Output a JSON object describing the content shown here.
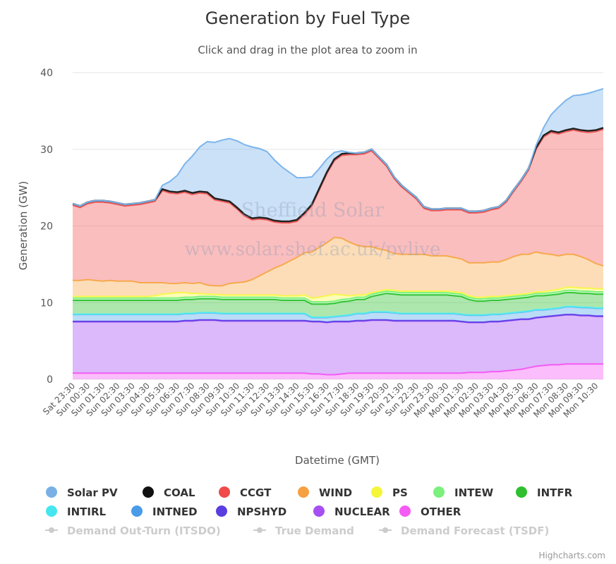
{
  "chart_data": {
    "type": "area",
    "stacking": "normal",
    "title": "Generation by Fuel Type",
    "subtitle": "Click and drag in the plot area to zoom in",
    "xlabel": "Datetime (GMT)",
    "ylabel": "Generation (GW)",
    "ylim": [
      0,
      40
    ],
    "yticks": [
      "0",
      "10",
      "20",
      "30",
      "40"
    ],
    "grid": true,
    "legend_position": "bottom",
    "watermark_lines": [
      "Sheffield Solar",
      "www.solar.shef.ac.uk/pvlive"
    ],
    "credits": "Highcharts.com",
    "x_tick_labels": [
      "Sat 23:30",
      "Sun 00:30",
      "Sun 01:30",
      "Sun 02:30",
      "Sun 03:30",
      "Sun 04:30",
      "Sun 05:30",
      "Sun 06:30",
      "Sun 07:30",
      "Sun 08:30",
      "Sun 09:30",
      "Sun 10:30",
      "Sun 11:30",
      "Sun 12:30",
      "Sun 13:30",
      "Sun 14:30",
      "Sun 15:30",
      "Sun 16:30",
      "Sun 17:30",
      "Sun 18:30",
      "Sun 19:30",
      "Sun 20:30",
      "Sun 21:30",
      "Sun 22:30",
      "Sun 23:30",
      "Mon 00:30",
      "Mon 01:30",
      "Mon 02:30",
      "Mon 03:30",
      "Mon 04:30",
      "Mon 05:30",
      "Mon 06:30",
      "Mon 07:30",
      "Mon 08:30",
      "Mon 09:30",
      "Mon 10:30"
    ],
    "x_tick_index": [
      0,
      2,
      4,
      6,
      8,
      10,
      12,
      14,
      16,
      18,
      20,
      22,
      24,
      26,
      28,
      30,
      32,
      34,
      36,
      38,
      40,
      42,
      44,
      46,
      48,
      50,
      52,
      54,
      56,
      58,
      60,
      62,
      64,
      66,
      68,
      70
    ],
    "series": [
      {
        "name": "OTHER",
        "color": "#f45bf4",
        "legend_color": "#f45bf4",
        "values": [
          0.8,
          0.8,
          0.8,
          0.8,
          0.8,
          0.8,
          0.8,
          0.8,
          0.8,
          0.8,
          0.8,
          0.8,
          0.8,
          0.8,
          0.8,
          0.8,
          0.8,
          0.8,
          0.8,
          0.8,
          0.8,
          0.8,
          0.8,
          0.8,
          0.8,
          0.8,
          0.8,
          0.8,
          0.8,
          0.8,
          0.8,
          0.8,
          0.7,
          0.7,
          0.6,
          0.6,
          0.7,
          0.8,
          0.8,
          0.8,
          0.8,
          0.8,
          0.8,
          0.8,
          0.8,
          0.8,
          0.8,
          0.8,
          0.8,
          0.8,
          0.8,
          0.8,
          0.8,
          0.9,
          0.9,
          0.9,
          1.0,
          1.0,
          1.1,
          1.2,
          1.3,
          1.5,
          1.7,
          1.8,
          1.9,
          1.9,
          2.0,
          2.0,
          2.0,
          2.0,
          2.0,
          2.0
        ]
      },
      {
        "name": "NUCLEAR",
        "color": "#a64ff2",
        "legend_color": "#a64ff2",
        "values": [
          6.7,
          6.7,
          6.7,
          6.7,
          6.7,
          6.7,
          6.7,
          6.7,
          6.7,
          6.7,
          6.7,
          6.7,
          6.7,
          6.7,
          6.7,
          6.8,
          6.8,
          6.9,
          6.9,
          6.9,
          6.8,
          6.8,
          6.8,
          6.8,
          6.8,
          6.8,
          6.8,
          6.8,
          6.8,
          6.8,
          6.8,
          6.8,
          6.8,
          6.8,
          6.8,
          6.9,
          6.8,
          6.7,
          6.8,
          6.8,
          6.9,
          6.9,
          6.9,
          6.8,
          6.8,
          6.8,
          6.8,
          6.8,
          6.8,
          6.8,
          6.8,
          6.8,
          6.7,
          6.5,
          6.5,
          6.5,
          6.5,
          6.5,
          6.5,
          6.5,
          6.5,
          6.3,
          6.3,
          6.3,
          6.3,
          6.4,
          6.4,
          6.4,
          6.3,
          6.3,
          6.2,
          6.2
        ]
      },
      {
        "name": "NPSHYD",
        "color": "#6243e8",
        "legend_color": "#5a3ee0",
        "values": [
          0.05,
          0.05,
          0.05,
          0.05,
          0.05,
          0.05,
          0.05,
          0.05,
          0.05,
          0.05,
          0.05,
          0.05,
          0.05,
          0.05,
          0.05,
          0.05,
          0.05,
          0.05,
          0.05,
          0.05,
          0.05,
          0.05,
          0.05,
          0.05,
          0.05,
          0.05,
          0.05,
          0.05,
          0.05,
          0.05,
          0.05,
          0.05,
          0.05,
          0.05,
          0.05,
          0.05,
          0.05,
          0.05,
          0.05,
          0.05,
          0.05,
          0.05,
          0.05,
          0.05,
          0.05,
          0.05,
          0.05,
          0.05,
          0.05,
          0.05,
          0.05,
          0.05,
          0.05,
          0.05,
          0.05,
          0.05,
          0.05,
          0.05,
          0.05,
          0.05,
          0.05,
          0.05,
          0.05,
          0.05,
          0.05,
          0.05,
          0.05,
          0.05,
          0.05,
          0.05,
          0.05,
          0.05
        ]
      },
      {
        "name": "INTNED",
        "color": "#56a7ea",
        "legend_color": "#4a9be8",
        "values": [
          0.9,
          0.9,
          0.9,
          0.9,
          0.9,
          0.9,
          0.9,
          0.9,
          0.9,
          0.9,
          0.9,
          0.9,
          0.9,
          0.9,
          0.9,
          0.9,
          0.9,
          0.9,
          0.9,
          0.9,
          0.9,
          0.9,
          0.9,
          0.9,
          0.9,
          0.9,
          0.9,
          0.9,
          0.9,
          0.9,
          0.9,
          0.9,
          0.5,
          0.5,
          0.6,
          0.6,
          0.7,
          0.8,
          0.9,
          0.9,
          1.0,
          1.0,
          1.0,
          1.0,
          0.9,
          0.9,
          0.9,
          0.9,
          0.9,
          0.9,
          0.9,
          0.9,
          0.9,
          0.9,
          0.9,
          0.9,
          0.9,
          0.9,
          0.9,
          0.9,
          0.9,
          1.0,
          1.0,
          0.9,
          0.9,
          0.9,
          1.0,
          1.0,
          1.0,
          1.0,
          1.0,
          1.0
        ]
      },
      {
        "name": "INTIRL",
        "color": "#52ecf2",
        "legend_color": "#45e6f0",
        "values": [
          0.05,
          0.05,
          0.05,
          0.05,
          0.05,
          0.05,
          0.05,
          0.05,
          0.05,
          0.05,
          0.05,
          0.05,
          0.05,
          0.05,
          0.05,
          0.05,
          0.05,
          0.05,
          0.05,
          0.05,
          0.05,
          0.05,
          0.05,
          0.05,
          0.05,
          0.05,
          0.05,
          0.05,
          0.05,
          0.05,
          0.05,
          0.05,
          0.05,
          0.05,
          0.05,
          0.05,
          0.05,
          0.05,
          0.05,
          0.05,
          0.05,
          0.05,
          0.05,
          0.05,
          0.05,
          0.05,
          0.05,
          0.05,
          0.05,
          0.05,
          0.05,
          0.05,
          0.05,
          0.05,
          0.05,
          0.05,
          0.05,
          0.05,
          0.05,
          0.05,
          0.05,
          0.05,
          0.05,
          0.05,
          0.05,
          0.05,
          0.05,
          0.05,
          0.05,
          0.05,
          0.05,
          0.05
        ]
      },
      {
        "name": "INTFR",
        "color": "#35c435",
        "legend_color": "#2fbf2f",
        "values": [
          1.8,
          1.8,
          1.8,
          1.8,
          1.8,
          1.8,
          1.8,
          1.8,
          1.8,
          1.8,
          1.8,
          1.8,
          1.8,
          1.8,
          1.8,
          1.8,
          1.8,
          1.8,
          1.8,
          1.8,
          1.8,
          1.8,
          1.8,
          1.8,
          1.8,
          1.8,
          1.8,
          1.8,
          1.7,
          1.7,
          1.7,
          1.7,
          1.7,
          1.7,
          1.7,
          1.7,
          1.8,
          1.8,
          1.8,
          1.8,
          2.0,
          2.2,
          2.4,
          2.4,
          2.4,
          2.4,
          2.4,
          2.4,
          2.4,
          2.4,
          2.4,
          2.3,
          2.3,
          2.0,
          1.8,
          1.8,
          1.8,
          1.8,
          1.8,
          1.8,
          1.8,
          1.8,
          1.8,
          1.8,
          1.8,
          1.8,
          1.8,
          1.8,
          1.8,
          1.8,
          1.8,
          1.8
        ]
      },
      {
        "name": "INTEW",
        "color": "#7df27d",
        "legend_color": "#7cf07c",
        "values": [
          0.3,
          0.3,
          0.3,
          0.3,
          0.3,
          0.3,
          0.3,
          0.3,
          0.3,
          0.3,
          0.3,
          0.3,
          0.3,
          0.3,
          0.3,
          0.3,
          0.3,
          0.3,
          0.3,
          0.3,
          0.3,
          0.3,
          0.3,
          0.3,
          0.3,
          0.3,
          0.3,
          0.3,
          0.3,
          0.3,
          0.3,
          0.3,
          0.3,
          0.3,
          0.3,
          0.3,
          0.3,
          0.3,
          0.3,
          0.3,
          0.3,
          0.3,
          0.3,
          0.3,
          0.3,
          0.3,
          0.3,
          0.3,
          0.3,
          0.3,
          0.3,
          0.3,
          0.3,
          0.3,
          0.3,
          0.3,
          0.3,
          0.3,
          0.3,
          0.3,
          0.3,
          0.3,
          0.3,
          0.3,
          0.3,
          0.3,
          0.3,
          0.3,
          0.3,
          0.3,
          0.3,
          0.3
        ]
      },
      {
        "name": "PS",
        "color": "#f7f74d",
        "legend_color": "#f5f53a",
        "values": [
          0.2,
          0.2,
          0.2,
          0.2,
          0.2,
          0.2,
          0.2,
          0.2,
          0.2,
          0.2,
          0.2,
          0.3,
          0.5,
          0.6,
          0.7,
          0.6,
          0.5,
          0.4,
          0.3,
          0.3,
          0.3,
          0.3,
          0.3,
          0.3,
          0.3,
          0.3,
          0.3,
          0.3,
          0.3,
          0.3,
          0.3,
          0.4,
          0.5,
          0.6,
          0.8,
          0.9,
          0.6,
          0.4,
          0.3,
          0.3,
          0.2,
          0.2,
          0.2,
          0.2,
          0.2,
          0.2,
          0.2,
          0.2,
          0.2,
          0.2,
          0.2,
          0.2,
          0.2,
          0.2,
          0.2,
          0.2,
          0.2,
          0.2,
          0.2,
          0.2,
          0.2,
          0.2,
          0.2,
          0.2,
          0.3,
          0.3,
          0.4,
          0.4,
          0.4,
          0.4,
          0.4,
          0.4
        ]
      },
      {
        "name": "WIND",
        "color": "#f7a94d",
        "legend_color": "#f5a142",
        "values": [
          2.1,
          2.1,
          2.2,
          2.1,
          2.0,
          2.1,
          2.0,
          2.0,
          2.0,
          1.8,
          1.8,
          1.7,
          1.5,
          1.3,
          1.2,
          1.3,
          1.3,
          1.4,
          1.2,
          1.1,
          1.2,
          1.5,
          1.6,
          1.7,
          2.0,
          2.5,
          3.0,
          3.5,
          4.0,
          4.5,
          5.0,
          5.5,
          6.0,
          6.5,
          6.9,
          7.4,
          7.4,
          7.0,
          6.5,
          6.3,
          6.0,
          5.5,
          5.1,
          4.8,
          4.8,
          4.8,
          4.8,
          4.8,
          4.6,
          4.6,
          4.6,
          4.5,
          4.4,
          4.3,
          4.5,
          4.5,
          4.5,
          4.5,
          4.7,
          5.0,
          5.2,
          5.1,
          5.2,
          5.0,
          4.7,
          4.4,
          4.3,
          4.3,
          4.1,
          3.7,
          3.3,
          3.0
        ]
      },
      {
        "name": "CCGT",
        "color": "#f25c5c",
        "legend_color": "#f04a4a",
        "values": [
          9.8,
          9.5,
          9.9,
          10.2,
          10.3,
          10.1,
          10.0,
          9.8,
          9.9,
          10.2,
          10.4,
          10.6,
          12.0,
          11.8,
          11.7,
          11.8,
          11.6,
          11.7,
          11.9,
          11.2,
          11.0,
          10.5,
          9.6,
          8.6,
          7.8,
          7.4,
          6.8,
          6.0,
          5.5,
          5.0,
          4.7,
          5.0,
          6.0,
          7.5,
          9.0,
          10.0,
          10.8,
          11.4,
          11.8,
          12.1,
          12.5,
          11.8,
          11.0,
          9.8,
          8.8,
          8.0,
          7.2,
          6.0,
          5.9,
          5.9,
          6.0,
          6.2,
          6.4,
          6.5,
          6.5,
          6.6,
          6.8,
          7.0,
          7.5,
          8.5,
          9.5,
          11.0,
          13.4,
          15.2,
          15.9,
          15.9,
          16.0,
          16.2,
          16.3,
          16.6,
          17.2,
          17.8
        ]
      },
      {
        "name": "COAL",
        "color": "#222222",
        "legend_color": "#111111",
        "values": [
          0.2,
          0.2,
          0.2,
          0.2,
          0.2,
          0.2,
          0.2,
          0.2,
          0.2,
          0.2,
          0.2,
          0.2,
          0.2,
          0.2,
          0.2,
          0.2,
          0.2,
          0.2,
          0.2,
          0.2,
          0.2,
          0.2,
          0.2,
          0.2,
          0.2,
          0.2,
          0.2,
          0.2,
          0.2,
          0.2,
          0.2,
          0.2,
          0.2,
          0.2,
          0.2,
          0.2,
          0.2,
          0.2,
          0.2,
          0.2,
          0.2,
          0.2,
          0.2,
          0.2,
          0.2,
          0.2,
          0.2,
          0.2,
          0.2,
          0.2,
          0.2,
          0.2,
          0.2,
          0.2,
          0.2,
          0.2,
          0.2,
          0.2,
          0.2,
          0.2,
          0.2,
          0.2,
          0.2,
          0.2,
          0.2,
          0.2,
          0.2,
          0.2,
          0.2,
          0.2,
          0.2,
          0.2
        ]
      },
      {
        "name": "Solar PV",
        "color": "#7cb5ec",
        "legend_color": "#7ab0e6",
        "values": [
          0,
          0,
          0,
          0,
          0,
          0,
          0,
          0,
          0,
          0,
          0,
          0,
          0.5,
          1.3,
          2.2,
          3.5,
          4.8,
          5.8,
          6.6,
          7.3,
          7.8,
          8.2,
          8.7,
          9.1,
          9.3,
          9.0,
          8.7,
          7.9,
          7.1,
          6.4,
          5.5,
          4.6,
          3.6,
          2.6,
          1.7,
          0.9,
          0.4,
          0.1,
          0,
          0,
          0,
          0,
          0,
          0,
          0,
          0,
          0,
          0,
          0,
          0,
          0,
          0,
          0,
          0,
          0,
          0,
          0,
          0,
          0,
          0,
          0,
          0,
          0.3,
          1.0,
          2.1,
          3.3,
          3.9,
          4.3,
          4.6,
          4.9,
          5.1,
          5.1
        ]
      }
    ],
    "extra_legend": [
      {
        "name": "Demand Out-Turn (ITSDO)",
        "visible": false
      },
      {
        "name": "True Demand",
        "visible": false
      },
      {
        "name": "Demand Forecast (TSDF)",
        "visible": false
      }
    ],
    "legend_order": [
      "Solar PV",
      "COAL",
      "CCGT",
      "WIND",
      "PS",
      "INTEW",
      "INTFR",
      "INTIRL",
      "INTNED",
      "NPSHYD",
      "NUCLEAR",
      "OTHER"
    ]
  }
}
